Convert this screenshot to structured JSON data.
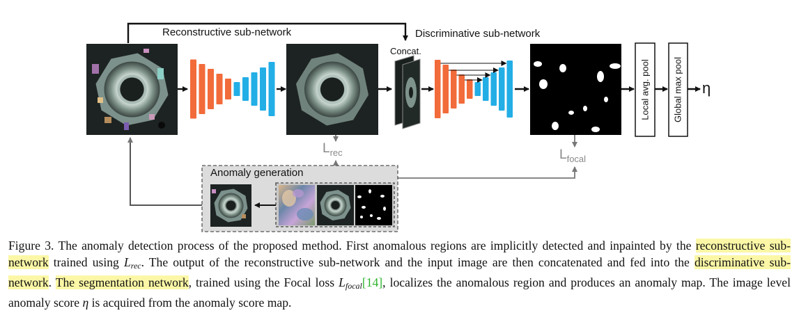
{
  "figure": {
    "recon_label": "Reconstructive sub-network",
    "disc_label": "Discriminative sub-network",
    "concat_label": "Concat.",
    "l_rec": {
      "L": "L",
      "sub": "rec"
    },
    "l_focal": {
      "L": "L",
      "sub": "focal"
    },
    "anomaly_generation_label": "Anomaly generation",
    "pool1_label": "Local avg. pool",
    "pool2_label": "Global max pool",
    "eta_label": "η",
    "colors": {
      "encoder": "#f26b3a",
      "decoder": "#23aee6",
      "arrow": "#111111",
      "gray_arrow": "#777777"
    }
  },
  "caption": {
    "figure_number": "Figure 3.",
    "s1": " The anomaly detection process of the proposed method.  First anomalous regions are implicitly detected and inpainted by the ",
    "hl1": "reconstructive sub-network",
    "s2": " trained using ",
    "lrec_L": "L",
    "lrec_sub": "rec",
    "s3": ".  The output of the reconstructive sub-network and the input image are then concatenated and fed into the ",
    "hl2": "discriminative sub-network",
    "s4": ".  ",
    "hl3": "The segmentation network",
    "s5": ", trained using the Focal loss ",
    "lfocal_L": "L",
    "lfocal_sub": "focal",
    "cite": "[14]",
    "s6": ", localizes the anomalous region and produces an anomaly map. The image level anomaly score ",
    "eta": "η",
    "s7": " is acquired from the anomaly score map."
  }
}
